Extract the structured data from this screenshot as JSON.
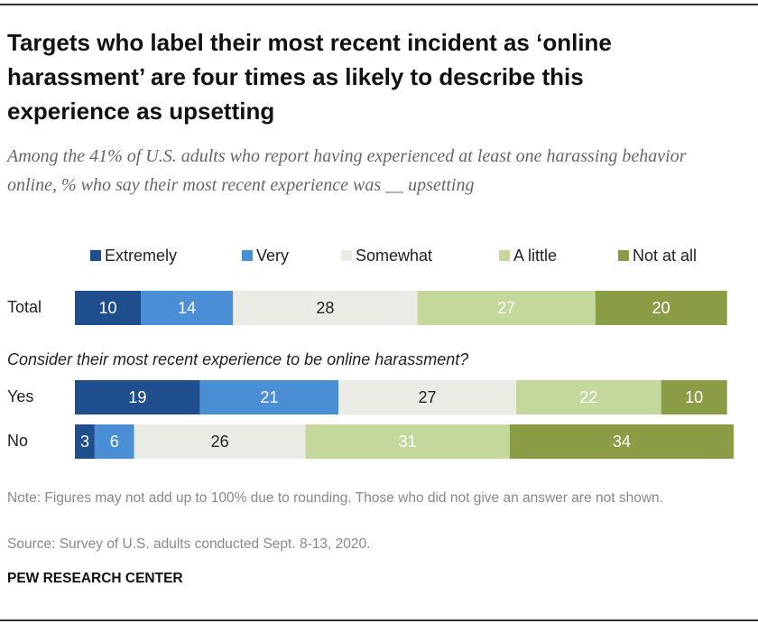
{
  "chart_data": {
    "type": "bar",
    "orientation": "horizontal",
    "stacked": true,
    "title": "Targets who label their most recent incident as ‘online harassment’ are four times as likely to describe this experience as upsetting",
    "subtitle": "Among the 41% of U.S. adults who report having experienced at least one harassing behavior online, % who say their most recent experience was __ upsetting",
    "group_label": "Consider their most recent experience to be online harassment?",
    "categories": [
      "Total",
      "Yes",
      "No"
    ],
    "series": [
      {
        "name": "Extremely",
        "color": "#1f4e8c",
        "values": [
          10,
          19,
          3
        ]
      },
      {
        "name": "Very",
        "color": "#4a8fd6",
        "values": [
          14,
          21,
          6
        ]
      },
      {
        "name": "Somewhat",
        "color": "#ebebe5",
        "values": [
          28,
          27,
          26
        ]
      },
      {
        "name": "A little",
        "color": "#c4d89b",
        "values": [
          27,
          22,
          31
        ]
      },
      {
        "name": "Not at all",
        "color": "#8b9c47",
        "values": [
          20,
          10,
          34
        ]
      }
    ],
    "note": "Note: Figures may not add up to 100% due to rounding. Those who did not give an answer are not shown.",
    "source": "Source: Survey of U.S. adults conducted Sept. 8-13, 2020.",
    "credit": "PEW RESEARCH CENTER"
  }
}
